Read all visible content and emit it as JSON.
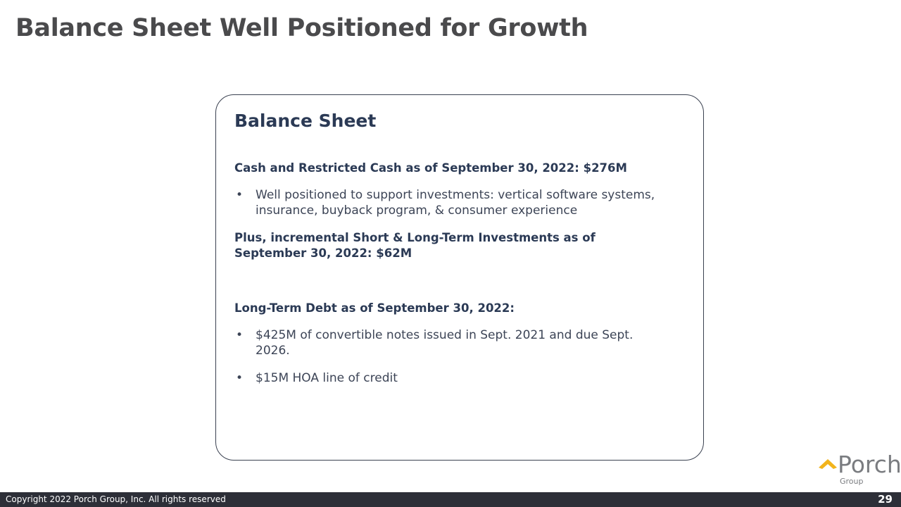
{
  "slide": {
    "title": "Balance Sheet Well Positioned for Growth",
    "page_number": "29"
  },
  "card": {
    "heading": "Balance Sheet",
    "cash_heading": "Cash and Restricted Cash as of September 30, 2022: $276M",
    "cash_bullets": [
      "Well positioned to support investments: vertical software systems, insurance, buyback program, & consumer experience"
    ],
    "investments_heading": "Plus, incremental Short & Long-Term Investments as of September 30, 2022: $62M",
    "debt_heading": "Long-Term Debt as of September 30, 2022:",
    "debt_bullets": [
      "$425M of convertible notes issued in Sept. 2021 and due Sept. 2026.",
      "$15M HOA line of credit"
    ],
    "bullet_char": "•"
  },
  "footer": {
    "copyright": "Copyright 2022 Porch Group, Inc. All rights reserved"
  },
  "logo": {
    "name": "Porch",
    "sub": "Group",
    "accent": "#f2b41c"
  }
}
